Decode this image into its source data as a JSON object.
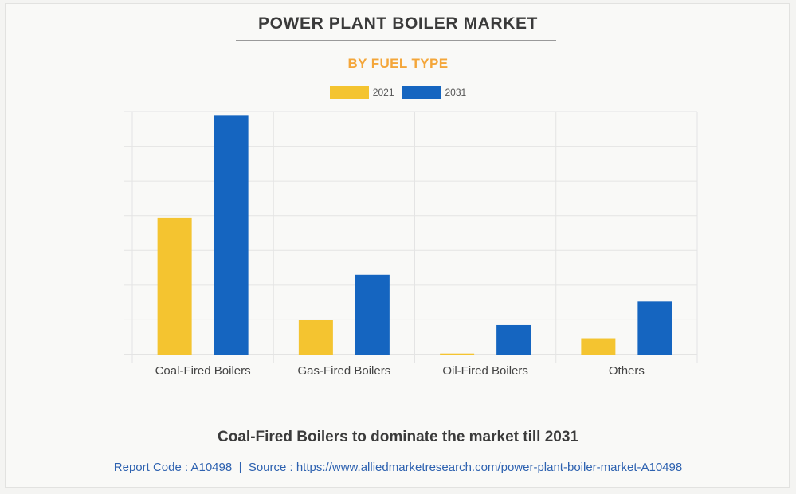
{
  "title": "POWER PLANT BOILER MARKET",
  "subtitle": "BY FUEL TYPE",
  "headline": "Coal-Fired Boilers to dominate the market till 2031",
  "report_code_text": "Report Code : A10498",
  "separator": "|",
  "source_text": "Source : https://www.alliedmarketresearch.com/power-plant-boiler-market-A10498",
  "colors": {
    "2021": "#f4c430",
    "2031": "#1565c0"
  },
  "chart_data": {
    "type": "bar",
    "title": "POWER PLANT BOILER MARKET",
    "subtitle": "BY FUEL TYPE",
    "categories": [
      "Coal-Fired Boilers",
      "Gas-Fired Boilers",
      "Oil-Fired Boilers",
      "Others"
    ],
    "series": [
      {
        "name": "2021",
        "values": [
          39.5,
          10.0,
          0.3,
          4.7
        ],
        "color": "#f4c430"
      },
      {
        "name": "2031",
        "values": [
          69.0,
          23.0,
          8.5,
          15.3
        ],
        "color": "#1565c0"
      }
    ],
    "ylim": [
      0,
      70
    ],
    "grid": true,
    "legend": "top-center",
    "xlabel": "",
    "ylabel": ""
  }
}
